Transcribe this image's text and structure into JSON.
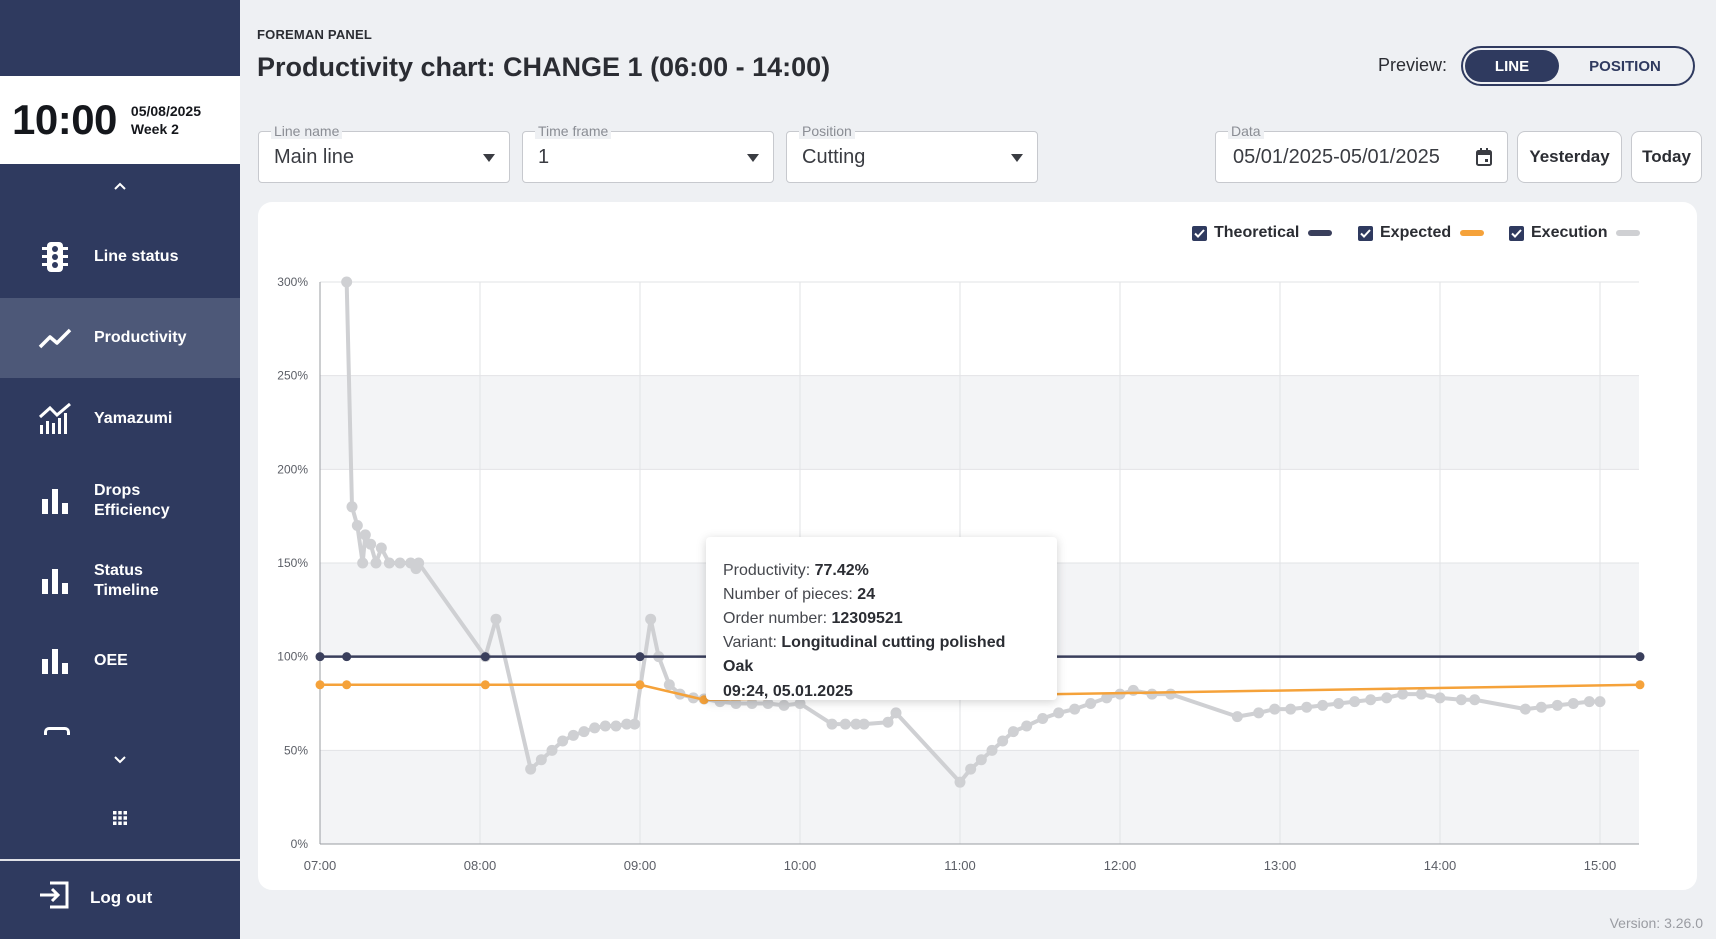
{
  "sidebar": {
    "clock_time": "10:00",
    "clock_date": "05/08/2025",
    "clock_week": "Week 2",
    "items": [
      {
        "label": "Line status",
        "icon": "traffic-light-icon"
      },
      {
        "label": "Productivity",
        "icon": "trend-line-icon",
        "active": true
      },
      {
        "label": "Yamazumi",
        "icon": "area-chart-icon"
      },
      {
        "label": "Drops\nEfficiency",
        "icon": "bar-chart-icon"
      },
      {
        "label": "Status\nTimeline",
        "icon": "bar-chart-icon"
      },
      {
        "label": "OEE",
        "icon": "bar-chart-icon"
      }
    ],
    "logout_label": "Log out"
  },
  "header": {
    "panel_label": "FOREMAN PANEL",
    "title": "Productivity chart: CHANGE 1 (06:00 - 14:00)",
    "preview_label": "Preview:",
    "preview_options": [
      "LINE",
      "POSITION"
    ],
    "preview_selected": "LINE"
  },
  "filters": {
    "line_name": {
      "label": "Line name",
      "value": "Main line"
    },
    "time_frame": {
      "label": "Time frame",
      "value": "1"
    },
    "position": {
      "label": "Position",
      "value": "Cutting"
    },
    "data": {
      "label": "Data",
      "value": "05/01/2025-05/01/2025"
    },
    "yesterday_label": "Yesterday",
    "today_label": "Today"
  },
  "legend": [
    {
      "label": "Theoretical",
      "color": "#3a3f5c",
      "checked": true
    },
    {
      "label": "Expected",
      "color": "#f5a23a",
      "checked": true
    },
    {
      "label": "Execution",
      "color": "#cfd0d3",
      "checked": true
    }
  ],
  "tooltip": {
    "productivity_label": "Productivity:",
    "productivity_value": "77.42%",
    "pieces_label": "Number of pieces:",
    "pieces_value": "24",
    "order_label": "Order number:",
    "order_value": "12309521",
    "variant_label": "Variant:",
    "variant_value": "Longitudinal cutting polished Oak",
    "timestamp": "09:24, 05.01.2025"
  },
  "version": "Version: 3.26.0",
  "chart_data": {
    "type": "line",
    "ylim": [
      0,
      300
    ],
    "yticks": [
      "0%",
      "50%",
      "100%",
      "150%",
      "200%",
      "250%",
      "300%"
    ],
    "xticks": [
      "07:00",
      "08:00",
      "09:00",
      "10:00",
      "11:00",
      "12:00",
      "13:00",
      "14:00",
      "15:00"
    ],
    "grid": true,
    "legend_position": "top-right",
    "series": [
      {
        "name": "Theoretical",
        "color": "#3a3f5c",
        "points": [
          [
            "07:00",
            100
          ],
          [
            "07:10",
            100
          ],
          [
            "08:02",
            100
          ],
          [
            "09:00",
            100
          ],
          [
            "15:15",
            100
          ]
        ]
      },
      {
        "name": "Expected",
        "color": "#f5a23a",
        "points": [
          [
            "07:00",
            85
          ],
          [
            "07:10",
            85
          ],
          [
            "08:02",
            85
          ],
          [
            "09:00",
            85
          ],
          [
            "09:24",
            77
          ],
          [
            "15:15",
            85
          ]
        ]
      },
      {
        "name": "Execution",
        "color": "#cfd0d3",
        "points": [
          [
            "07:10",
            300
          ],
          [
            "07:12",
            180
          ],
          [
            "07:14",
            170
          ],
          [
            "07:16",
            150
          ],
          [
            "07:17",
            165
          ],
          [
            "07:19",
            160
          ],
          [
            "07:21",
            150
          ],
          [
            "07:23",
            158
          ],
          [
            "07:26",
            150
          ],
          [
            "07:30",
            150
          ],
          [
            "07:34",
            150
          ],
          [
            "07:36",
            147
          ],
          [
            "07:37",
            150
          ],
          [
            "08:02",
            100
          ],
          [
            "08:06",
            120
          ],
          [
            "08:19",
            40
          ],
          [
            "08:23",
            45
          ],
          [
            "08:27",
            50
          ],
          [
            "08:31",
            55
          ],
          [
            "08:35",
            58
          ],
          [
            "08:39",
            60
          ],
          [
            "08:43",
            62
          ],
          [
            "08:47",
            63
          ],
          [
            "08:51",
            63
          ],
          [
            "08:55",
            64
          ],
          [
            "08:58",
            64
          ],
          [
            "09:04",
            120
          ],
          [
            "09:07",
            100
          ],
          [
            "09:11",
            85
          ],
          [
            "09:15",
            80
          ],
          [
            "09:20",
            78
          ],
          [
            "09:24",
            77.42
          ],
          [
            "09:30",
            76
          ],
          [
            "09:36",
            75
          ],
          [
            "09:42",
            75
          ],
          [
            "09:48",
            75
          ],
          [
            "09:54",
            74
          ],
          [
            "10:00",
            75
          ],
          [
            "10:12",
            64
          ],
          [
            "10:17",
            64
          ],
          [
            "10:21",
            64
          ],
          [
            "10:24",
            64
          ],
          [
            "10:33",
            65
          ],
          [
            "10:36",
            70
          ],
          [
            "11:00",
            33
          ],
          [
            "11:04",
            40
          ],
          [
            "11:08",
            45
          ],
          [
            "11:12",
            50
          ],
          [
            "11:16",
            55
          ],
          [
            "11:20",
            60
          ],
          [
            "11:25",
            63
          ],
          [
            "11:31",
            67
          ],
          [
            "11:37",
            70
          ],
          [
            "11:43",
            72
          ],
          [
            "11:49",
            75
          ],
          [
            "11:55",
            78
          ],
          [
            "12:00",
            80
          ],
          [
            "12:05",
            82
          ],
          [
            "12:12",
            80
          ],
          [
            "12:19",
            80
          ],
          [
            "12:44",
            68
          ],
          [
            "12:52",
            70
          ],
          [
            "12:58",
            72
          ],
          [
            "13:04",
            72
          ],
          [
            "13:10",
            73
          ],
          [
            "13:16",
            74
          ],
          [
            "13:22",
            75
          ],
          [
            "13:28",
            76
          ],
          [
            "13:34",
            77
          ],
          [
            "13:40",
            78
          ],
          [
            "13:46",
            80
          ],
          [
            "13:53",
            80
          ],
          [
            "14:00",
            78
          ],
          [
            "14:08",
            77
          ],
          [
            "14:13",
            77
          ],
          [
            "14:32",
            72
          ],
          [
            "14:38",
            73
          ],
          [
            "14:44",
            74
          ],
          [
            "14:50",
            75
          ],
          [
            "14:56",
            76
          ],
          [
            "15:00",
            76
          ]
        ]
      }
    ]
  }
}
